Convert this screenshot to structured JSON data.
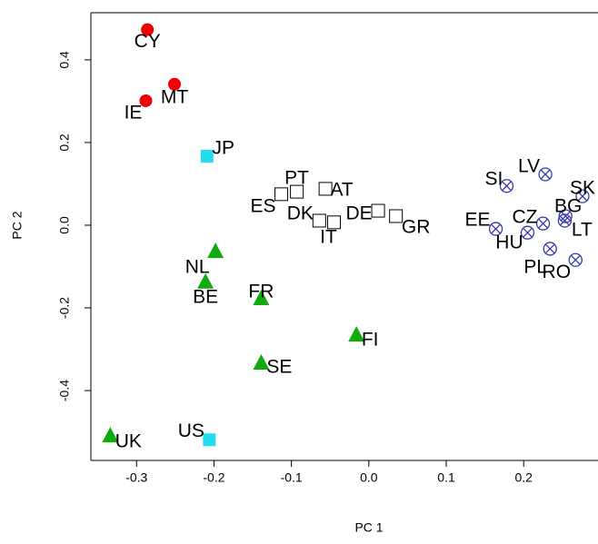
{
  "chart_data": {
    "type": "scatter",
    "x_label": "PC 1",
    "y_label": "PC 2",
    "xlim": [
      -0.359,
      0.296
    ],
    "ylim": [
      -0.569,
      0.514
    ],
    "xticks": [
      -0.3,
      -0.2,
      -0.1,
      {
        "value": 0,
        "label": "0.0"
      },
      0.1,
      0.2
    ],
    "yticks": [
      -0.4,
      -0.2,
      {
        "value": 0,
        "label": "0.0"
      },
      0.2,
      0.4
    ],
    "series": [
      {
        "marker": "filled-circle",
        "color": "#ee0000",
        "labels": [
          "CY",
          "MT",
          "IE"
        ],
        "x": [
          -0.286,
          -0.251,
          -0.288
        ],
        "y": [
          0.473,
          0.341,
          0.301
        ]
      },
      {
        "marker": "filled-square",
        "color": "#22ddee",
        "labels": [
          "JP",
          "US"
        ],
        "x": [
          -0.209,
          -0.206
        ],
        "y": [
          0.167,
          -0.519
        ]
      },
      {
        "marker": "filled-triangle",
        "color": "#11aa11",
        "labels": [
          "NL",
          "BE",
          "FR",
          "FI",
          "SE",
          "UK"
        ],
        "x": [
          -0.198,
          -0.211,
          -0.139,
          -0.016,
          -0.139,
          -0.334
        ],
        "y": [
          -0.064,
          -0.138,
          -0.178,
          -0.266,
          -0.334,
          -0.51
        ]
      },
      {
        "marker": "open-square",
        "color": "#000000",
        "labels": [
          "PT",
          "ES",
          "AT",
          "DK",
          "IT",
          "DE",
          "GR"
        ],
        "x": [
          -0.093,
          -0.113,
          -0.056,
          -0.064,
          -0.045,
          0.012,
          0.035
        ],
        "y": [
          0.081,
          0.075,
          0.088,
          0.011,
          0.007,
          0.035,
          0.022
        ]
      },
      {
        "marker": "circle-x",
        "color": "#3a3aa8",
        "labels": [
          "SI",
          "LV",
          "SK",
          "BG",
          "EE",
          "CZ",
          "HU",
          "LT",
          "PL",
          "RO"
        ],
        "x": [
          0.178,
          0.228,
          0.276,
          0.254,
          0.164,
          0.225,
          0.205,
          0.253,
          0.234,
          0.267
        ],
        "y": [
          0.095,
          0.123,
          0.07,
          0.022,
          -0.009,
          0.004,
          -0.018,
          0.011,
          -0.057,
          -0.084
        ]
      }
    ]
  }
}
